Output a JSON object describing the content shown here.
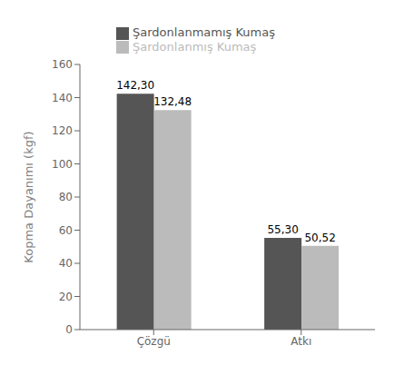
{
  "chart_data": {
    "type": "bar",
    "categories": [
      "Çözgü",
      "Atkı"
    ],
    "series": [
      {
        "name": "Şardonlanmamış Kumaş",
        "color": "#555555",
        "values": [
          142.3,
          55.3
        ],
        "value_labels": [
          "142,30",
          "55,30"
        ]
      },
      {
        "name": "Şardonlanmış Kumaş",
        "color": "#bbbbbb",
        "values": [
          132.48,
          50.52
        ],
        "value_labels": [
          "132,48",
          "50,52"
        ]
      }
    ],
    "ylabel": "Kopma Dayanımı (kgf)",
    "ylim": [
      0,
      160
    ],
    "yticks": [
      0,
      20,
      40,
      60,
      80,
      100,
      120,
      140,
      160
    ],
    "grid": false,
    "legend": "top",
    "data_labels": true
  }
}
